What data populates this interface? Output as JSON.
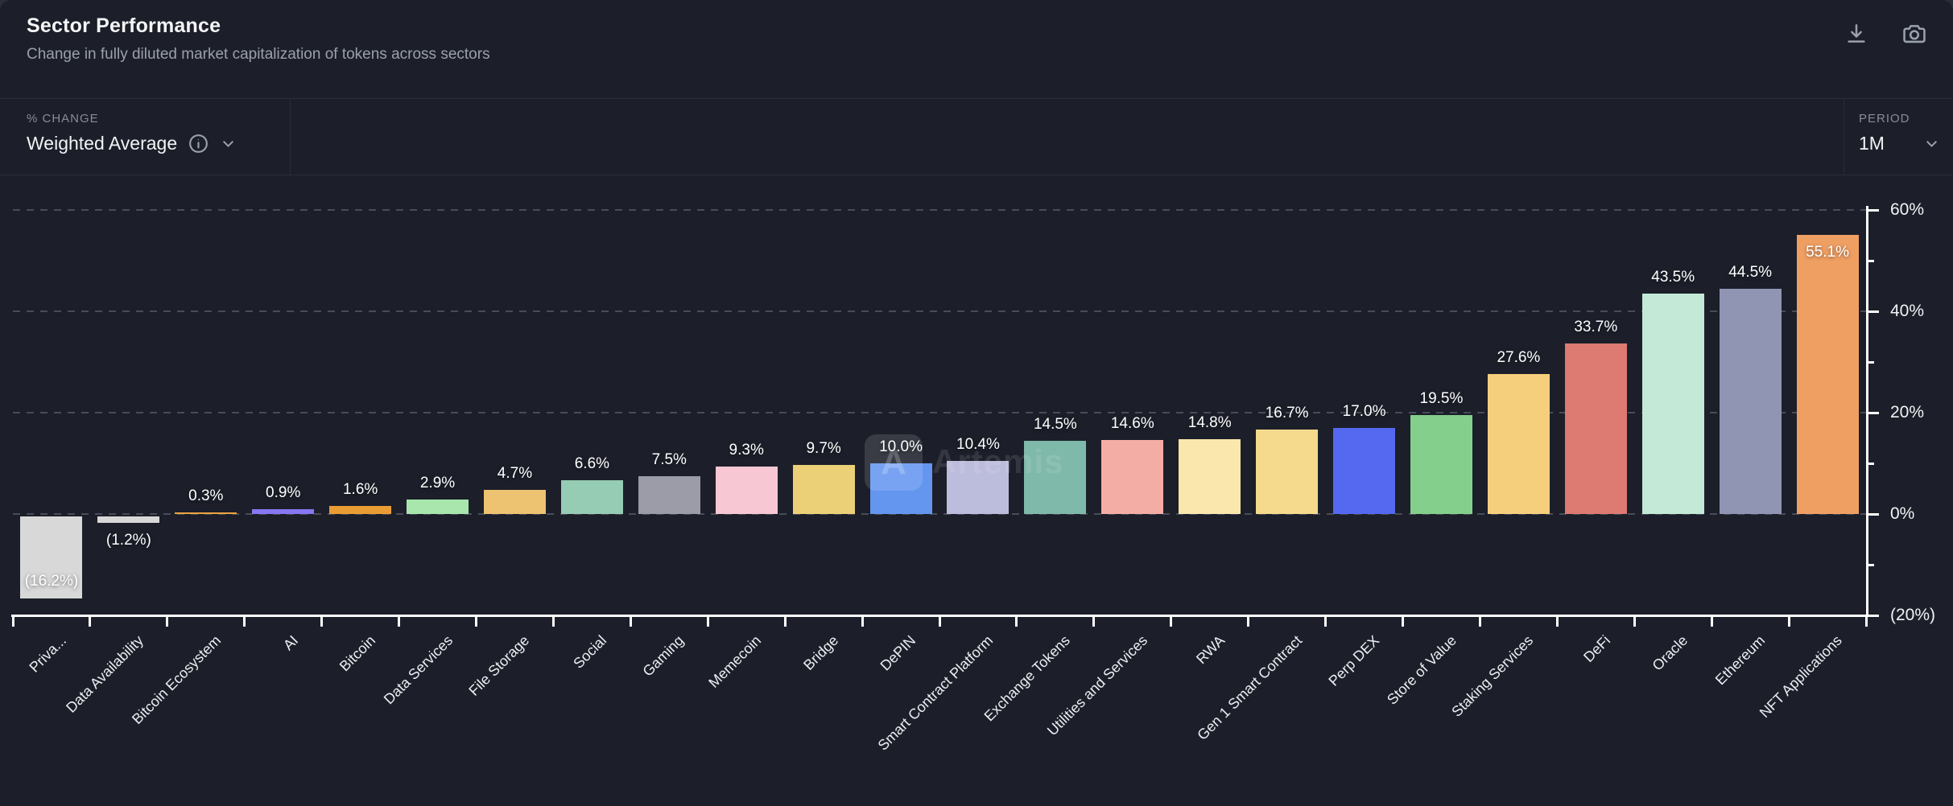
{
  "header": {
    "title": "Sector Performance",
    "subtitle": "Change in fully diluted market capitalization of tokens across sectors",
    "action_icons": [
      "download-icon",
      "camera-icon"
    ]
  },
  "controls": {
    "metric": {
      "label": "% CHANGE",
      "value": "Weighted Average",
      "icons": [
        "info-icon",
        "chevron-down-icon"
      ]
    },
    "period": {
      "label": "PERIOD",
      "value": "1M",
      "icons": [
        "chevron-down-icon"
      ]
    }
  },
  "watermark": {
    "logo_letter": "A",
    "text": "Artemis"
  },
  "chart_data": {
    "type": "bar",
    "title": "Sector Performance",
    "xlabel": "",
    "ylabel": "% change",
    "ylim": [
      -20,
      60
    ],
    "grid": "horizontal dashed at 0/20/40/60",
    "legend": "none",
    "categories": [
      "Priva...",
      "Data Availability",
      "Bitcoin Ecosystem",
      "AI",
      "Bitcoin",
      "Data Services",
      "File Storage",
      "Social",
      "Gaming",
      "Memecoin",
      "Bridge",
      "DePIN",
      "Smart Contract Platform",
      "Exchange Tokens",
      "Utilities and Services",
      "RWA",
      "Gen 1 Smart Contract",
      "Perp DEX",
      "Store of Value",
      "Staking Services",
      "DeFi",
      "Oracle",
      "Ethereum",
      "NFT Applications"
    ],
    "values": [
      -16.2,
      -1.2,
      0.3,
      0.9,
      1.6,
      2.9,
      4.7,
      6.6,
      7.5,
      9.3,
      9.7,
      10.0,
      10.4,
      14.5,
      14.6,
      14.8,
      16.7,
      17.0,
      19.5,
      27.6,
      33.7,
      43.5,
      44.5,
      55.1
    ],
    "value_labels": [
      "(16.2%)",
      "(1.2%)",
      "0.3%",
      "0.9%",
      "1.6%",
      "2.9%",
      "4.7%",
      "6.6%",
      "7.5%",
      "9.3%",
      "9.7%",
      "10.0%",
      "10.4%",
      "14.5%",
      "14.6%",
      "14.8%",
      "16.7%",
      "17.0%",
      "19.5%",
      "27.6%",
      "33.7%",
      "43.5%",
      "44.5%",
      "55.1%"
    ],
    "label_placements": [
      "inside-bottom",
      "below",
      "above",
      "above",
      "above",
      "above",
      "above",
      "above",
      "above",
      "above",
      "above",
      "above",
      "above",
      "above",
      "above",
      "above",
      "above",
      "above",
      "above",
      "above",
      "above",
      "above",
      "above",
      "inside-top"
    ],
    "bar_colors": [
      "#d8d8d8",
      "#d8d8d8",
      "#eda23f",
      "#8678f2",
      "#eb9d35",
      "#a9e6ae",
      "#edc271",
      "#96cbb4",
      "#9b9ca8",
      "#f7c7d3",
      "#ecd077",
      "#6496f0",
      "#bcbcdc",
      "#7fb9a9",
      "#f4ada4",
      "#f9e7ae",
      "#f5da8e",
      "#5468f0",
      "#85cf8d",
      "#f6cf7d",
      "#dd7a71",
      "#c4e9d6",
      "#9195b4",
      "#f09f63"
    ],
    "y_axis": {
      "ticks": [
        {
          "value": 60,
          "label": "60%"
        },
        {
          "value": 40,
          "label": "40%"
        },
        {
          "value": 20,
          "label": "20%"
        },
        {
          "value": 0,
          "label": "0%"
        },
        {
          "value": -20,
          "label": "(20%)"
        }
      ],
      "minor_ticks": [
        50,
        30,
        10,
        -10
      ]
    }
  }
}
